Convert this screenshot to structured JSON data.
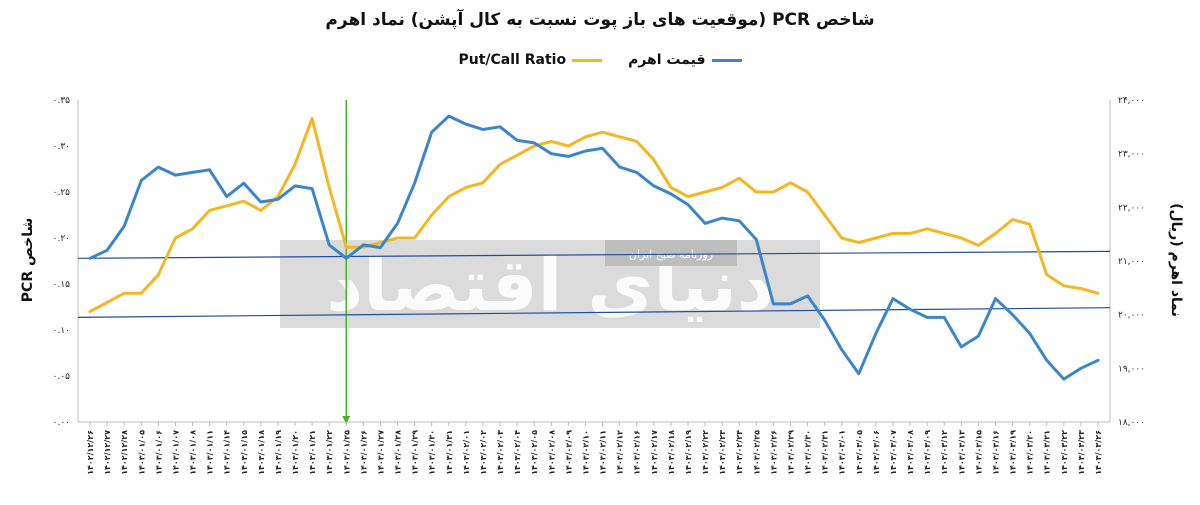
{
  "title": "شاخص PCR (موقعیت های باز پوت نسبت به کال آپشن) نماد اهرم",
  "legend": {
    "items": [
      {
        "label": "قیمت اهرم",
        "color": "#3b86c9"
      },
      {
        "label": "Put/Call Ratio",
        "color": "#f4b623"
      }
    ]
  },
  "watermark": {
    "text_main": "دنیای اقتصاد",
    "text_sub": "روزنامه صبح ایران"
  },
  "chart_data": {
    "type": "line",
    "ylabel_left": "شاخص PCR",
    "ylabel_right": "نماد اهرم (ریال)",
    "y_left_ticks": [
      "۰.۰۰",
      "۰.۰۵",
      "۰.۱۰",
      "۰.۱۵",
      "۰.۲۰",
      "۰.۲۵",
      "۰.۳۰",
      "۰.۳۵"
    ],
    "y_right_ticks": [
      "۱۸,۰۰۰",
      "۱۹,۰۰۰",
      "۲۰,۰۰۰",
      "۲۱,۰۰۰",
      "۲۲,۰۰۰",
      "۲۳,۰۰۰",
      "۲۴,۰۰۰"
    ],
    "ylim_left": [
      0,
      0.35
    ],
    "ylim_right": [
      18000,
      24000
    ],
    "x_labels": [
      "۱۴۰۲/۱۲/۲۶",
      "۱۴۰۲/۱۲/۲۷",
      "۱۴۰۲/۱۲/۲۸",
      "۱۴۰۳/۰۱/۰۵",
      "۱۴۰۳/۰۱/۰۶",
      "۱۴۰۳/۰۱/۰۷",
      "۱۴۰۳/۰۱/۰۸",
      "۱۴۰۳/۰۱/۱۱",
      "۱۴۰۳/۰۱/۱۴",
      "۱۴۰۳/۰۱/۱۵",
      "۱۴۰۳/۰۱/۱۸",
      "۱۴۰۳/۰۱/۱۹",
      "۱۴۰۳/۰۱/۲۰",
      "۱۴۰۳/۰۱/۲۱",
      "۱۴۰۳/۰۱/۲۲",
      "۱۴۰۳/۰۱/۲۵",
      "۱۴۰۳/۰۱/۲۶",
      "۱۴۰۳/۰۱/۲۷",
      "۱۴۰۳/۰۱/۲۸",
      "۱۴۰۳/۰۱/۲۹",
      "۱۴۰۳/۰۱/۳۰",
      "۱۴۰۳/۰۱/۳۱",
      "۱۴۰۳/۰۲/۰۱",
      "۱۴۰۳/۰۲/۰۲",
      "۱۴۰۳/۰۲/۰۳",
      "۱۴۰۳/۰۲/۰۴",
      "۱۴۰۳/۰۲/۰۵",
      "۱۴۰۳/۰۲/۰۸",
      "۱۴۰۳/۰۲/۰۹",
      "۱۴۰۳/۰۲/۱۰",
      "۱۴۰۳/۰۲/۱۱",
      "۱۴۰۳/۰۲/۱۲",
      "۱۴۰۳/۰۲/۱۶",
      "۱۴۰۳/۰۲/۱۷",
      "۱۴۰۳/۰۲/۱۸",
      "۱۴۰۳/۰۲/۱۹",
      "۱۴۰۳/۰۲/۲۲",
      "۱۴۰۳/۰۲/۲۳",
      "۱۴۰۳/۰۲/۲۴",
      "۱۴۰۳/۰۲/۲۵",
      "۱۴۰۳/۰۲/۲۶",
      "۱۴۰۳/۰۲/۲۹",
      "۱۴۰۳/۰۲/۳۰",
      "۱۴۰۳/۰۲/۳۱",
      "۱۴۰۳/۰۳/۰۱",
      "۱۴۰۳/۰۳/۰۵",
      "۱۴۰۳/۰۳/۰۶",
      "۱۴۰۳/۰۳/۰۷",
      "۱۴۰۳/۰۳/۰۸",
      "۱۴۰۳/۰۳/۰۹",
      "۱۴۰۳/۰۳/۱۲",
      "۱۴۰۳/۰۳/۱۳",
      "۱۴۰۳/۰۳/۱۵",
      "۱۴۰۳/۰۳/۱۶",
      "۱۴۰۳/۰۳/۱۹",
      "۱۴۰۳/۰۳/۲۰",
      "۱۴۰۳/۰۳/۲۱",
      "۱۴۰۳/۰۳/۲۲",
      "۱۴۰۳/۰۳/۲۳",
      "۱۴۰۳/۰۳/۲۶"
    ],
    "series": [
      {
        "name": "Put/Call Ratio",
        "axis": "left",
        "color": "#f4b623",
        "values": [
          0.12,
          0.13,
          0.14,
          0.14,
          0.16,
          0.2,
          0.21,
          0.23,
          0.235,
          0.24,
          0.23,
          0.245,
          0.28,
          0.33,
          0.255,
          0.19,
          0.19,
          0.195,
          0.2,
          0.2,
          0.225,
          0.245,
          0.255,
          0.26,
          0.28,
          0.29,
          0.3,
          0.305,
          0.3,
          0.31,
          0.315,
          0.31,
          0.305,
          0.285,
          0.255,
          0.245,
          0.25,
          0.255,
          0.265,
          0.25,
          0.25,
          0.26,
          0.25,
          0.225,
          0.2,
          0.195,
          0.2,
          0.205,
          0.205,
          0.21,
          0.205,
          0.2,
          0.192,
          0.205,
          0.22,
          0.215,
          0.16,
          0.148,
          0.145,
          0.14
        ]
      },
      {
        "name": "قیمت اهرم",
        "axis": "right",
        "color": "#3b86c9",
        "values": [
          21050,
          21200,
          21650,
          22500,
          22750,
          22600,
          22650,
          22700,
          22200,
          22450,
          22100,
          22150,
          22400,
          22350,
          21300,
          21050,
          21300,
          21250,
          21700,
          22450,
          23400,
          23700,
          23550,
          23450,
          23500,
          23250,
          23200,
          23000,
          22950,
          23050,
          23100,
          22750,
          22650,
          22400,
          22250,
          22050,
          21700,
          21800,
          21750,
          21400,
          20200,
          20200,
          20350,
          19900,
          19350,
          18900,
          19650,
          20300,
          20100,
          19950,
          19950,
          19400,
          19600,
          20300,
          20000,
          19650,
          19150,
          18800,
          19000,
          19150
        ]
      }
    ],
    "reference_lines": {
      "vertical_index": 15,
      "vertical_color": "#4caf2e",
      "trend_color": "#1f4e9e"
    }
  }
}
